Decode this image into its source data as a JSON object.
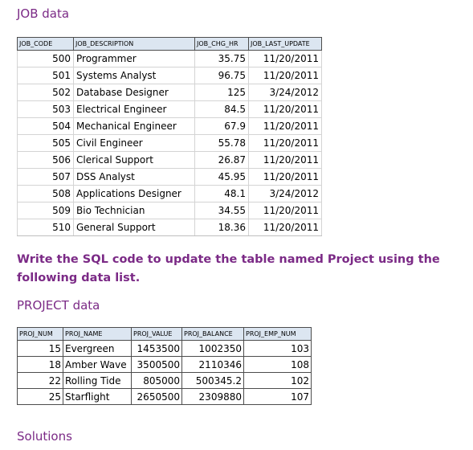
{
  "job_section": {
    "title": "JOB data",
    "headers": [
      "JOB_CODE",
      "JOB_DESCRIPTION",
      "JOB_CHG_HR",
      "JOB_LAST_UPDATE"
    ],
    "rows": [
      [
        "500",
        "Programmer",
        "35.75",
        "11/20/2011"
      ],
      [
        "501",
        "Systems Analyst",
        "96.75",
        "11/20/2011"
      ],
      [
        "502",
        "Database Designer",
        "125",
        "3/24/2012"
      ],
      [
        "503",
        "Electrical Engineer",
        "84.5",
        "11/20/2011"
      ],
      [
        "504",
        "Mechanical Engineer",
        "67.9",
        "11/20/2011"
      ],
      [
        "505",
        "Civil Engineer",
        "55.78",
        "11/20/2011"
      ],
      [
        "506",
        "Clerical Support",
        "26.87",
        "11/20/2011"
      ],
      [
        "507",
        "DSS Analyst",
        "45.95",
        "11/20/2011"
      ],
      [
        "508",
        "Applications Designer",
        "48.1",
        "3/24/2012"
      ],
      [
        "509",
        "Bio Technician",
        "34.55",
        "11/20/2011"
      ],
      [
        "510",
        "General Support",
        "18.36",
        "11/20/2011"
      ]
    ]
  },
  "instruction": "Write the SQL code to update the table named Project using the following data list.",
  "project_section": {
    "title": "PROJECT data",
    "headers": [
      "PROJ_NUM",
      "PROJ_NAME",
      "PROJ_VALUE",
      "PROJ_BALANCE",
      "PROJ_EMP_NUM"
    ],
    "rows": [
      [
        "15",
        "Evergreen",
        "1453500",
        "1002350",
        "103"
      ],
      [
        "18",
        "Amber Wave",
        "3500500",
        "2110346",
        "108"
      ],
      [
        "22",
        "Rolling Tide",
        "805000",
        "500345.2",
        "102"
      ],
      [
        "25",
        "Starflight",
        "2650500",
        "2309880",
        "107"
      ]
    ]
  },
  "solutions_heading": "Solutions"
}
